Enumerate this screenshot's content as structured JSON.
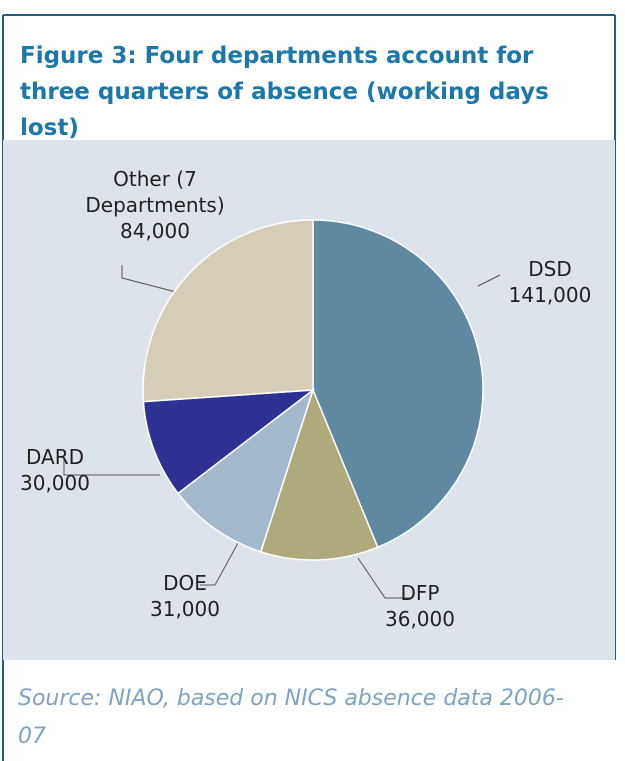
{
  "chart_data": {
    "type": "pie",
    "title": "Figure 3: Four departments account for three quarters of absence (working days lost)",
    "categories": [
      "DSD",
      "DFP",
      "DOE",
      "DARD",
      "Other (7 Departments)"
    ],
    "values": [
      141000,
      36000,
      31000,
      30000,
      84000
    ],
    "value_labels": [
      "141,000",
      "36,000",
      "31,000",
      "30,000",
      "84,000"
    ],
    "colors": [
      "#5f88a1",
      "#aeaa7b",
      "#a4b9cc",
      "#2e3192",
      "#d5cdb8"
    ],
    "source": "Source: NIAO, based on NICS absence data 2006-07"
  }
}
